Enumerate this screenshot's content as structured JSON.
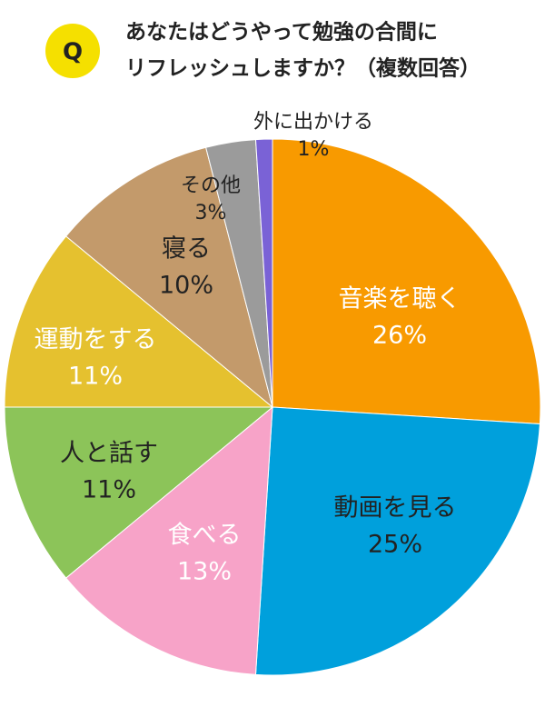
{
  "chart_data": {
    "type": "pie",
    "badge": "Q",
    "title": [
      "あなたはどうやって勉強の合間に",
      "リフレッシュしますか？（複数回答）"
    ],
    "categories": [
      "音楽を聴く",
      "動画を見る",
      "食べる",
      "人と話す",
      "運動をする",
      "寝る",
      "その他",
      "外に出かける"
    ],
    "values": [
      26,
      25,
      13,
      11,
      11,
      10,
      3,
      1
    ],
    "value_labels": [
      "26%",
      "25%",
      "13%",
      "11%",
      "11%",
      "10%",
      "3%",
      "1%"
    ],
    "colors": [
      "#f89a00",
      "#00a0dc",
      "#f7a3c8",
      "#8cc459",
      "#e5c12f",
      "#c39a6b",
      "#9b9b9b",
      "#7a62d6"
    ],
    "label_colors": [
      "#ffffff",
      "#222222",
      "#ffffff",
      "#222222",
      "#ffffff",
      "#222222",
      "#222222",
      "#222222"
    ]
  }
}
